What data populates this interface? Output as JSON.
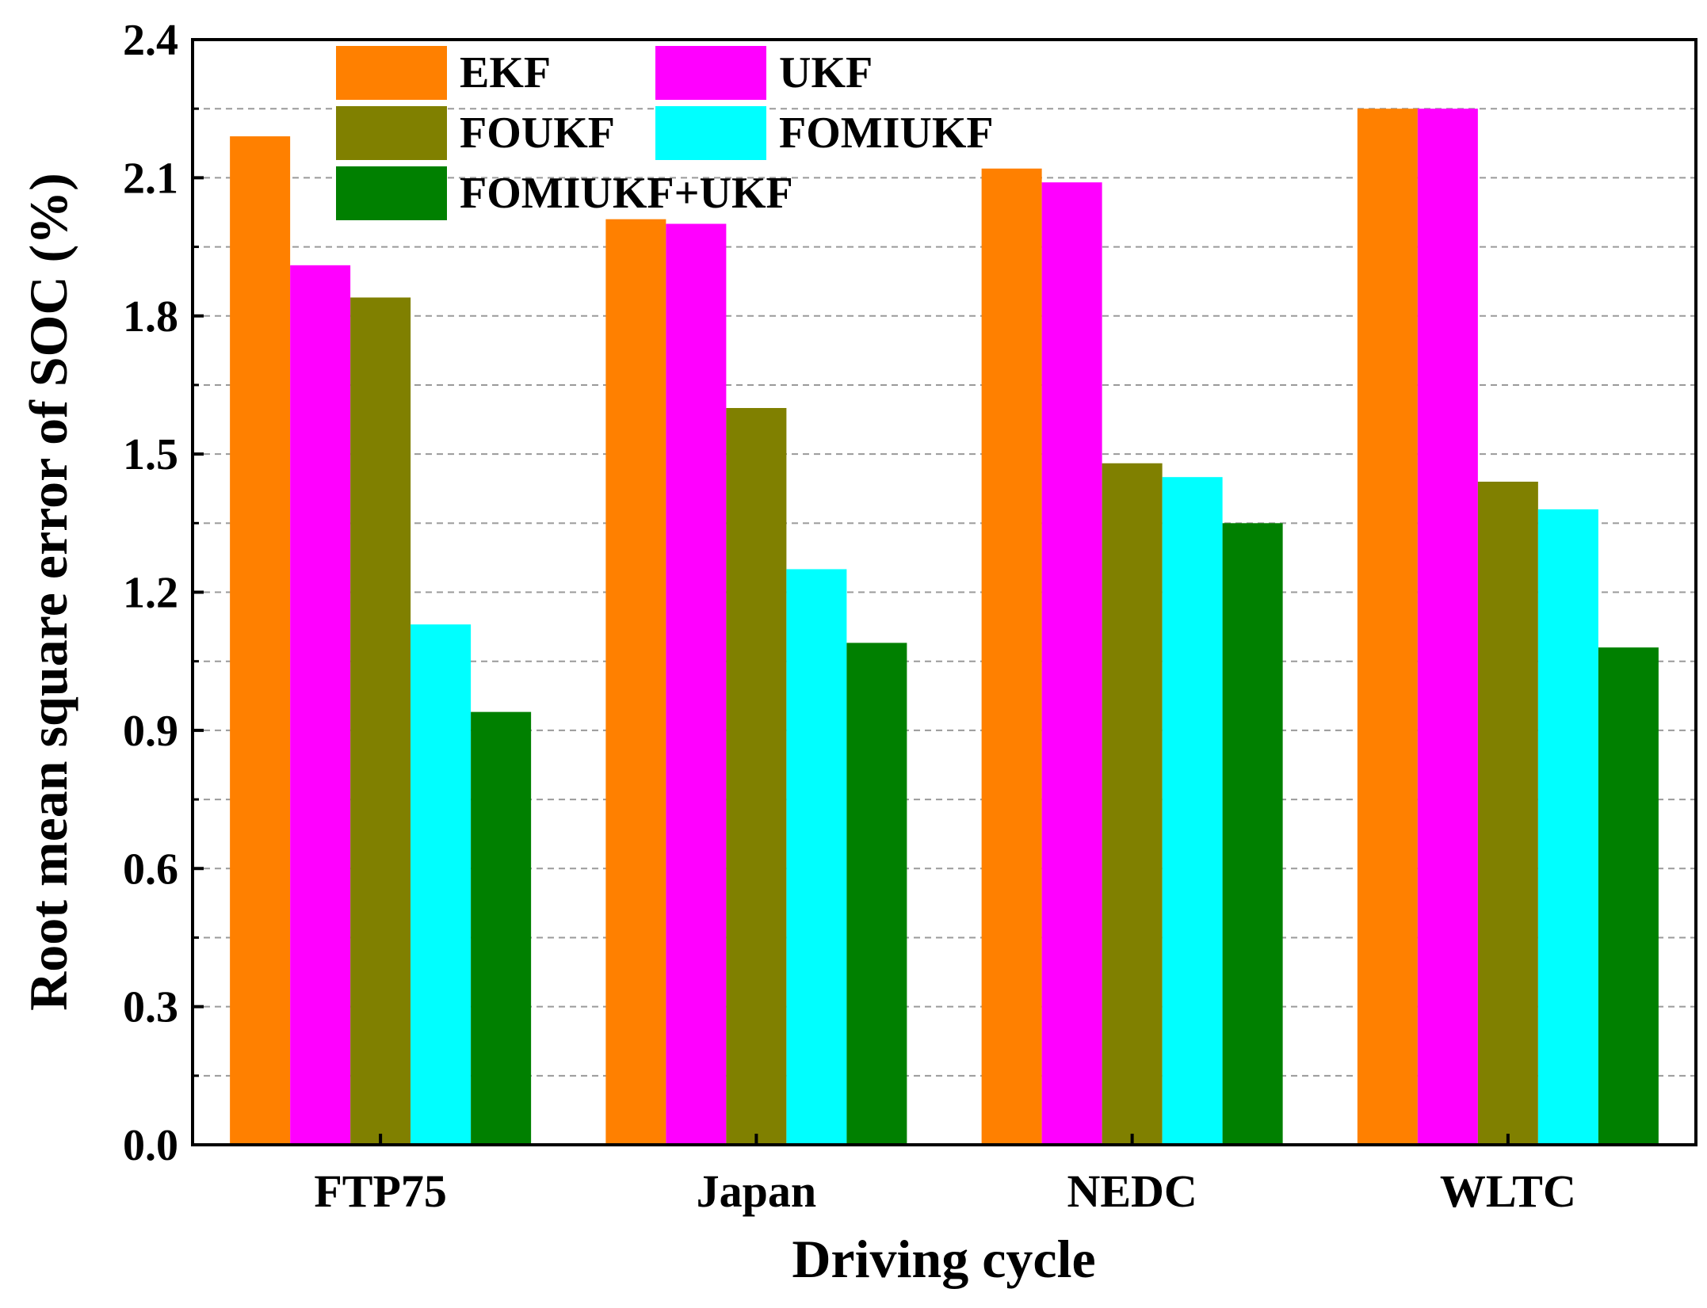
{
  "chart_data": {
    "type": "bar",
    "title": "",
    "xlabel": "Driving cycle",
    "ylabel": "Root mean square error of SOC (%)",
    "categories": [
      "FTP75",
      "Japan",
      "NEDC",
      "WLTC"
    ],
    "ylim": [
      0,
      2.4
    ],
    "yticks": [
      "0.0",
      "0.3",
      "0.6",
      "0.9",
      "1.2",
      "1.5",
      "1.8",
      "2.1",
      "2.4"
    ],
    "grid": "horizontal dashed",
    "legend_position": "top-left",
    "series": [
      {
        "name": "EKF",
        "color": "#ff8000",
        "values": [
          2.19,
          2.01,
          2.12,
          2.25
        ]
      },
      {
        "name": "UKF",
        "color": "#ff00ff",
        "values": [
          1.91,
          2.0,
          2.09,
          2.25
        ]
      },
      {
        "name": "FOUKF",
        "color": "#808000",
        "values": [
          1.84,
          1.6,
          1.48,
          1.44
        ]
      },
      {
        "name": "FOMIUKF",
        "color": "#00ffff",
        "values": [
          1.13,
          1.25,
          1.45,
          1.38
        ]
      },
      {
        "name": "FOMIUKF+UKF",
        "color": "#008000",
        "values": [
          0.94,
          1.09,
          1.35,
          1.08
        ]
      }
    ]
  }
}
